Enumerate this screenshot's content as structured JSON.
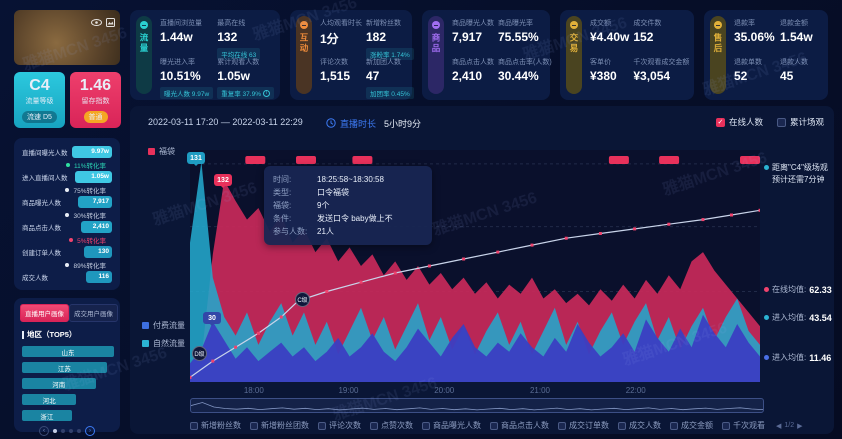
{
  "watermark": {
    "text": "雅猫MCN 3456"
  },
  "left_panel": {
    "score_card": {
      "grade": "C4",
      "grade_label": "流量等级",
      "grade_badge": "流速 D5",
      "retention": "1.46",
      "retention_label": "留存指数",
      "retention_badge": "普通"
    },
    "funnel": {
      "steps": [
        {
          "label": "直播间曝光人数",
          "value": "9.97w",
          "width": 40,
          "color": "#3fc8e4"
        },
        {
          "label": "进入直播间人数",
          "value": "1.05w",
          "width": 37,
          "color": "#3fc8e4"
        },
        {
          "label": "商品曝光人数",
          "value": "7,917",
          "width": 34,
          "color": "#22a3c6"
        },
        {
          "label": "商品点击人数",
          "value": "2,410",
          "width": 31,
          "color": "#22a3c6"
        },
        {
          "label": "创建订单人数",
          "value": "130",
          "width": 28,
          "color": "#1f97bd"
        },
        {
          "label": "成交人数",
          "value": "116",
          "width": 26,
          "color": "#1f97bd"
        }
      ],
      "conversions": [
        {
          "text": "11%转化率",
          "dot": "#2fe0a0",
          "color": "#2bd4b4"
        },
        {
          "text": "75%转化率",
          "dot": "#e8edf5",
          "color": "#c3cde0"
        },
        {
          "text": "30%转化率",
          "dot": "#e8edf5",
          "color": "#c3cde0"
        },
        {
          "text": "5%转化率",
          "dot": "#f0436e",
          "color": "#f0436e"
        },
        {
          "text": "89%转化率",
          "dot": "#e8edf5",
          "color": "#c3cde0"
        }
      ]
    },
    "portrait": {
      "tabs": [
        "直播用户画像",
        "成交用户画像"
      ],
      "section_title": "地区（TOP5）",
      "regions": [
        {
          "name": "山东",
          "width": 100
        },
        {
          "name": "江苏",
          "width": 92
        },
        {
          "name": "河南",
          "width": 80
        },
        {
          "name": "河北",
          "width": 59
        },
        {
          "name": "浙江",
          "width": 54
        }
      ]
    }
  },
  "stat_groups": [
    {
      "tab": "流量",
      "bg": "#0e3a45",
      "accent": "#2ad1d1",
      "width": 150,
      "items": [
        {
          "label": "直播间浏览量",
          "value": "1.44w"
        },
        {
          "label": "最高在线",
          "value": "132",
          "badge": "平均在线 63"
        },
        {
          "label": "曝光进入率",
          "value": "10.51%",
          "badge": "曝光人数 9.97w"
        },
        {
          "label": "累计观看人数",
          "value": "1.05w",
          "badge": "重复率 37.9%",
          "info": true
        }
      ]
    },
    {
      "tab": "互动",
      "bg": "#4a3424",
      "accent": "#f08c3a",
      "width": 122,
      "items": [
        {
          "label": "人均观看时长",
          "value": "1分"
        },
        {
          "label": "新增粉丝数",
          "value": "182",
          "badge": "涨粉率 1.74%"
        },
        {
          "label": "评论次数",
          "value": "1,515"
        },
        {
          "label": "新加团人数",
          "value": "47",
          "badge": "加团率 0.45%"
        }
      ]
    },
    {
      "tab": "商品",
      "bg": "#2c2766",
      "accent": "#a06df0",
      "width": 128,
      "items": [
        {
          "label": "商品曝光人数",
          "value": "7,917"
        },
        {
          "label": "商品曝光率",
          "value": "75.55%"
        },
        {
          "label": "商品点击人数",
          "value": "2,410"
        },
        {
          "label": "商品点击率(人数)",
          "value": "30.44%"
        }
      ]
    },
    {
      "tab": "交易",
      "bg": "#4a4420",
      "accent": "#e0b03a",
      "width": 134,
      "items": [
        {
          "label": "成交额",
          "value": "¥4.40w"
        },
        {
          "label": "成交件数",
          "value": "152"
        },
        {
          "label": "客单价",
          "value": "¥380"
        },
        {
          "label": "千次观看成交金额",
          "value": "¥3,054"
        }
      ]
    },
    {
      "tab": "售后",
      "bg": "#4a4420",
      "accent": "#e0b03a",
      "width": 124,
      "items": [
        {
          "label": "退款率",
          "value": "35.06%"
        },
        {
          "label": "退款金额",
          "value": "1.54w"
        },
        {
          "label": "退款单数",
          "value": "52"
        },
        {
          "label": "退款人数",
          "value": "45"
        }
      ]
    }
  ],
  "chart": {
    "date_range": "2022-03-11 17:20 — 2022-03-11 22:29",
    "duration_label": "直播时长",
    "duration_value": "5小时9分",
    "toggles": [
      {
        "label": "在线人数",
        "checked": true,
        "color": "#e8315b"
      },
      {
        "label": "累计场观",
        "checked": false
      }
    ],
    "legend_luckybag": "福袋",
    "legend_paid": "付费流量",
    "legend_paid_color": "#3d6fe0",
    "legend_natural": "自然流量",
    "legend_natural_color": "#2bb3d4"
  },
  "chart_data": {
    "type": "area",
    "x_ticks": [
      "18:00",
      "19:00",
      "20:00",
      "21:00",
      "22:00"
    ],
    "x_tick_pos_pct": [
      11.2,
      27.8,
      44.6,
      61.4,
      78.2
    ],
    "grid_y_pct": [
      6,
      33,
      61,
      90
    ],
    "series": [
      {
        "name": "在线人数",
        "kind": "area",
        "color": "#c9295a",
        "opacity": 0.92,
        "values": [
          3,
          10,
          55,
          87,
          78,
          70,
          75,
          65,
          72,
          60,
          66,
          56,
          62,
          52,
          58,
          50,
          55,
          46,
          52,
          44,
          50,
          42,
          47,
          40,
          45,
          38,
          43,
          36,
          42,
          38,
          45,
          36,
          40,
          34,
          38,
          33,
          40,
          35,
          42,
          36,
          44,
          38,
          46,
          40,
          52,
          56,
          48,
          42,
          36,
          30,
          24
        ]
      },
      {
        "name": "自然流量",
        "kind": "area",
        "color": "#23a7cc",
        "opacity": 0.88,
        "values": [
          60,
          95,
          45,
          28,
          20,
          30,
          16,
          26,
          34,
          20,
          30,
          16,
          26,
          12,
          22,
          32,
          18,
          28,
          14,
          24,
          34,
          18,
          28,
          14,
          24,
          12,
          22,
          30,
          16,
          26,
          12,
          22,
          32,
          16,
          26,
          12,
          22,
          30,
          16,
          26,
          34,
          18,
          28,
          14,
          24,
          32,
          18,
          28,
          36,
          22,
          16
        ]
      },
      {
        "name": "付费流量",
        "kind": "area",
        "color": "#3b3ec2",
        "opacity": 0.95,
        "values": [
          8,
          14,
          26,
          18,
          10,
          15,
          9,
          13,
          17,
          11,
          15,
          9,
          13,
          19,
          11,
          15,
          21,
          13,
          9,
          15,
          23,
          17,
          11,
          19,
          25,
          15,
          11,
          17,
          13,
          21,
          15,
          11,
          19,
          13,
          25,
          17,
          11,
          15,
          21,
          13,
          27,
          19,
          13,
          23,
          15,
          29,
          21,
          15,
          25,
          17,
          11
        ]
      }
    ],
    "cumulative_line": {
      "name": "累计场观",
      "color": "#c9d4ea",
      "marker_color": "#f0436e",
      "points": [
        [
          0,
          98
        ],
        [
          4,
          91
        ],
        [
          8,
          85
        ],
        [
          12,
          79
        ],
        [
          16,
          72
        ],
        [
          19,
          65
        ],
        [
          24,
          61
        ],
        [
          30,
          57
        ],
        [
          36,
          53
        ],
        [
          42,
          50
        ],
        [
          48,
          47
        ],
        [
          54,
          44
        ],
        [
          60,
          41
        ],
        [
          66,
          38
        ],
        [
          72,
          36
        ],
        [
          78,
          34
        ],
        [
          84,
          32
        ],
        [
          90,
          30
        ],
        [
          95,
          28
        ],
        [
          100,
          26
        ]
      ]
    },
    "luckybag_marker_pct": [
      9.7,
      18.6,
      28.5,
      73.5,
      82.3,
      96.5
    ],
    "annotations": {
      "peak_natural": "131",
      "peak_online": "132",
      "peak_paid": "30",
      "grade_d": "D级",
      "grade_c": "C级",
      "forecast_line1": "距离\"C4\"级场观",
      "forecast_line2": "预计还需7分钟",
      "averages": [
        {
          "label": "在线均值:",
          "value": "62.33",
          "color": "#f0436e",
          "top": 178
        },
        {
          "label": "进入均值:",
          "value": "43.54",
          "color": "#2bb3d4",
          "top": 206
        },
        {
          "label": "进入均值:",
          "value": "11.46",
          "color": "#4a6fe8",
          "top": 246
        }
      ]
    },
    "tooltip": {
      "rows": [
        [
          "时间:",
          "18:25:58~18:30:58"
        ],
        [
          "类型:",
          "口令福袋"
        ],
        [
          "福袋:",
          "9个"
        ],
        [
          "条件:",
          "发送口令 baby做上不"
        ],
        [
          "参与人数:",
          "21人"
        ]
      ]
    },
    "bottom_metrics": [
      "新增粉丝数",
      "新增粉丝团数",
      "评论次数",
      "点赞次数",
      "商品曝光人数",
      "商品点击人数",
      "成交订单数",
      "成交人数",
      "成交金额",
      "千次观看"
    ],
    "pager": "1/2"
  }
}
